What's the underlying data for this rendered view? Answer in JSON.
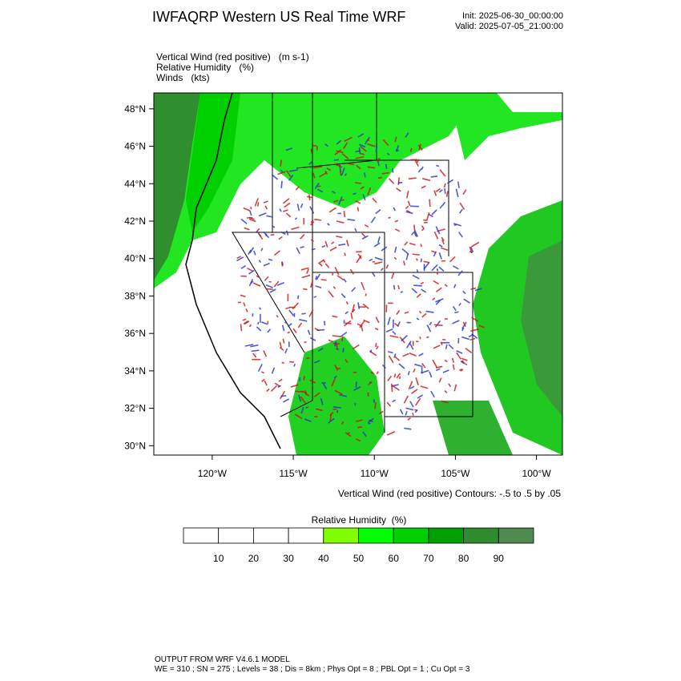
{
  "chart_data": {
    "type": "map",
    "title": "IWFAQRP Western US Real Time WRF",
    "init": "Init: 2025-06-30_00:00:00",
    "valid": "Valid: 2025-07-05_21:00:00",
    "field_labels": [
      "Vertical Wind (red positive)   (m s-1)",
      "Relative Humidity   (%)",
      "Winds   (kts)"
    ],
    "contour_note": "Vertical Wind (red positive) Contours: -.5 to .5 by .05",
    "xlim": [
      -123.6,
      -98.4
    ],
    "ylim": [
      29.5,
      48.85
    ],
    "xticks": [
      {
        "value": -120,
        "label": "120°W"
      },
      {
        "value": -115,
        "label": "115°W"
      },
      {
        "value": -110,
        "label": "110°W"
      },
      {
        "value": -105,
        "label": "105°W"
      },
      {
        "value": -100,
        "label": "100°W"
      }
    ],
    "yticks": [
      {
        "value": 30,
        "label": "30°N"
      },
      {
        "value": 32,
        "label": "32°N"
      },
      {
        "value": 34,
        "label": "34°N"
      },
      {
        "value": 36,
        "label": "36°N"
      },
      {
        "value": 38,
        "label": "38°N"
      },
      {
        "value": 40,
        "label": "40°N"
      },
      {
        "value": 42,
        "label": "42°N"
      },
      {
        "value": 44,
        "label": "44°N"
      },
      {
        "value": 46,
        "label": "46°N"
      },
      {
        "value": 48,
        "label": "48°N"
      }
    ],
    "colorbar": {
      "title": "Relative Humidity  (%)",
      "bins": [
        0,
        10,
        20,
        30,
        40,
        50,
        60,
        70,
        80,
        90,
        100
      ],
      "colors": [
        "#ffffff",
        "#ffffff",
        "#ffffff",
        "#ffffff",
        "#80ff00",
        "#00ff00",
        "#00d000",
        "#00a000",
        "#2e8b2e",
        "#4f8a4f"
      ],
      "ticks": [
        10,
        20,
        30,
        40,
        50,
        60,
        70,
        80,
        90
      ]
    },
    "footer": [
      "OUTPUT FROM WRF V4.6.1 MODEL",
      "WE = 310 ; SN = 275 ; Levels = 38 ; Dis = 8km ; Phys Opt = 8 ; PBL Opt = 1 ; Cu Opt = 3"
    ]
  }
}
